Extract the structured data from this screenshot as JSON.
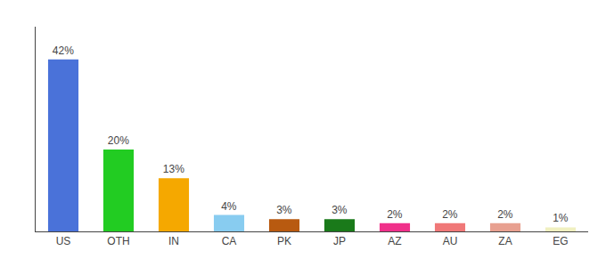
{
  "chart_data": {
    "type": "bar",
    "categories": [
      "US",
      "OTH",
      "IN",
      "CA",
      "PK",
      "JP",
      "AZ",
      "AU",
      "ZA",
      "EG"
    ],
    "values": [
      42,
      20,
      13,
      4,
      3,
      3,
      2,
      2,
      2,
      1
    ],
    "value_labels": [
      "42%",
      "20%",
      "13%",
      "4%",
      "3%",
      "3%",
      "2%",
      "2%",
      "2%",
      "1%"
    ],
    "colors": [
      "#4a72d9",
      "#22cc22",
      "#f5a800",
      "#88ccf0",
      "#b85a10",
      "#1a7a1a",
      "#f0308a",
      "#f07878",
      "#e8a090",
      "#f0f0c0"
    ],
    "data_labels": true,
    "ylim": [
      0,
      50
    ],
    "tick_labels": "x",
    "grid": false
  }
}
